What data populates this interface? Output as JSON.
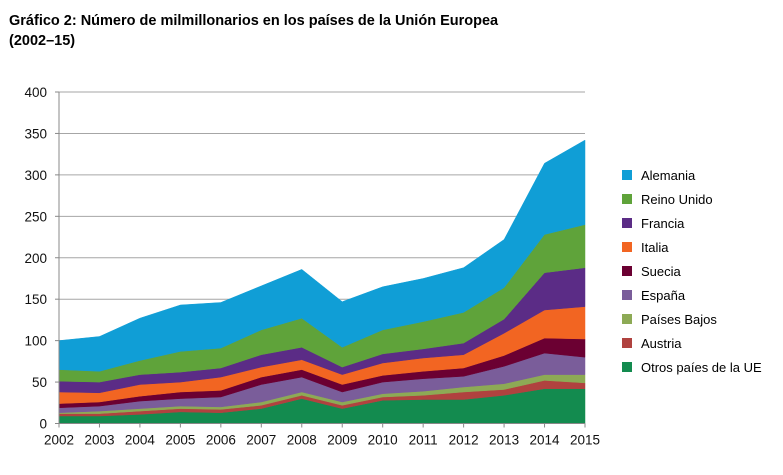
{
  "title_line1": "Gráfico 2: Número de milmillonarios en los países de la Unión Europea",
  "title_line2": "(2002–15)",
  "chart_data": {
    "type": "area",
    "stacked": true,
    "title": "Gráfico 2: Número de milmillonarios en los países de la Unión Europea (2002–15)",
    "xlabel": "",
    "ylabel": "",
    "x": [
      "2002",
      "2003",
      "2004",
      "2005",
      "2006",
      "2007",
      "2008",
      "2009",
      "2010",
      "2011",
      "2012",
      "2013",
      "2014",
      "2015"
    ],
    "ylim": [
      0,
      400
    ],
    "yticks": [
      "0",
      "50",
      "100",
      "150",
      "200",
      "250",
      "300",
      "350",
      "400"
    ],
    "ytick_values": [
      0,
      50,
      100,
      150,
      200,
      250,
      300,
      350,
      400
    ],
    "grid": "horizontal",
    "legend_position": "right",
    "series": [
      {
        "name": "Otros paíes de la UE",
        "color": "#138B4F",
        "values": [
          9,
          9,
          11,
          14,
          13,
          18,
          30,
          18,
          28,
          29,
          29,
          34,
          42,
          42
        ]
      },
      {
        "name": "Austria",
        "color": "#B0423F",
        "values": [
          3,
          3,
          4,
          4,
          4,
          4,
          4,
          4,
          4,
          5,
          9,
          7,
          10,
          7
        ]
      },
      {
        "name": "Países Bajos",
        "color": "#8DAA55",
        "values": [
          1,
          3,
          3,
          3,
          3,
          4,
          4,
          4,
          4,
          5,
          6,
          7,
          7,
          10
        ]
      },
      {
        "name": "España",
        "color": "#7A5D9A",
        "values": [
          6,
          6,
          9,
          9,
          12,
          21,
          18,
          12,
          14,
          15,
          13,
          21,
          26,
          21
        ]
      },
      {
        "name": "Suecia",
        "color": "#6B0032",
        "values": [
          5,
          5,
          6,
          8,
          8,
          9,
          9,
          9,
          8,
          9,
          10,
          13,
          18,
          22
        ]
      },
      {
        "name": "Italia",
        "color": "#F26522",
        "values": [
          14,
          11,
          14,
          12,
          16,
          12,
          12,
          12,
          15,
          16,
          16,
          27,
          34,
          39
        ]
      },
      {
        "name": "Francia",
        "color": "#5B2C86",
        "values": [
          13,
          13,
          12,
          12,
          11,
          15,
          15,
          9,
          11,
          11,
          14,
          17,
          45,
          47
        ]
      },
      {
        "name": "Reino Unido",
        "color": "#5FA33A",
        "values": [
          14,
          13,
          17,
          25,
          24,
          30,
          35,
          24,
          29,
          33,
          37,
          38,
          46,
          52
        ]
      },
      {
        "name": "Alemania",
        "color": "#109ED6",
        "values": [
          35,
          42,
          51,
          56,
          55,
          53,
          59,
          55,
          52,
          52,
          54,
          58,
          86,
          102
        ]
      }
    ],
    "legend_order": [
      "Alemania",
      "Reino Unido",
      "Francia",
      "Italia",
      "Suecia",
      "España",
      "Países Bajos",
      "Austria",
      "Otros paíes de la UE"
    ]
  }
}
